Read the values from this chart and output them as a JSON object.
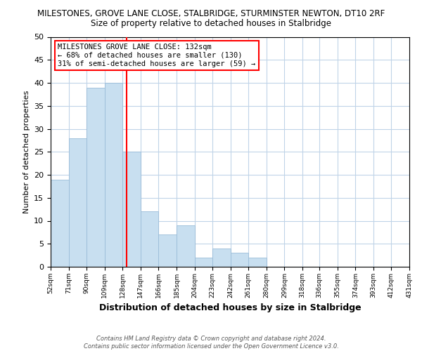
{
  "title": "MILESTONES, GROVE LANE CLOSE, STALBRIDGE, STURMINSTER NEWTON, DT10 2RF",
  "subtitle": "Size of property relative to detached houses in Stalbridge",
  "xlabel": "Distribution of detached houses by size in Stalbridge",
  "ylabel": "Number of detached properties",
  "bar_color": "#c8dff0",
  "bar_edge_color": "#9abcd8",
  "vline_x": 132,
  "vline_color": "red",
  "annotation_title": "MILESTONES GROVE LANE CLOSE: 132sqm",
  "annotation_line1": "← 68% of detached houses are smaller (130)",
  "annotation_line2": "31% of semi-detached houses are larger (59) →",
  "bins": [
    52,
    71,
    90,
    109,
    128,
    147,
    166,
    185,
    204,
    223,
    242,
    261,
    280,
    299,
    318,
    336,
    355,
    374,
    393,
    412,
    431
  ],
  "counts": [
    19,
    28,
    39,
    40,
    25,
    12,
    7,
    9,
    2,
    4,
    3,
    2,
    0,
    0,
    0,
    0,
    0,
    0,
    0,
    0
  ],
  "ylim": [
    0,
    50
  ],
  "yticks": [
    0,
    5,
    10,
    15,
    20,
    25,
    30,
    35,
    40,
    45,
    50
  ],
  "footer_line1": "Contains HM Land Registry data © Crown copyright and database right 2024.",
  "footer_line2": "Contains public sector information licensed under the Open Government Licence v3.0.",
  "background_color": "#ffffff",
  "grid_color": "#c0d4e8"
}
